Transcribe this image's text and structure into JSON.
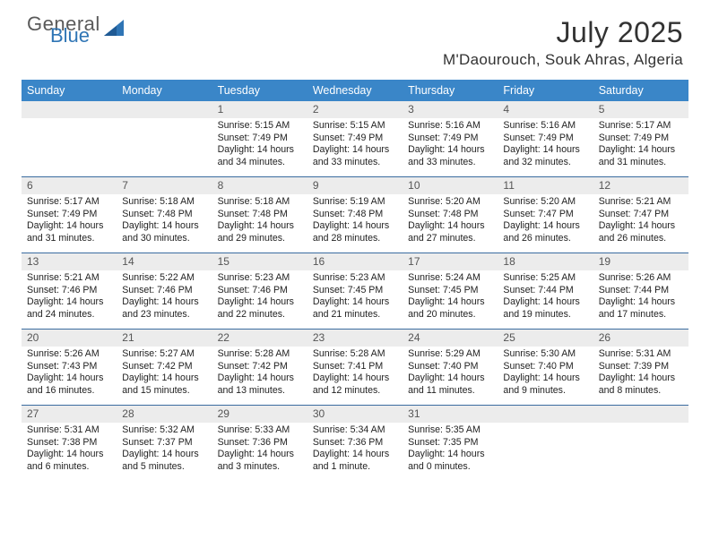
{
  "brand": {
    "word1": "General",
    "word2": "Blue"
  },
  "title": "July 2025",
  "location": "M'Daourouch, Souk Ahras, Algeria",
  "colors": {
    "header_bg": "#3a86c8",
    "header_text": "#ffffff",
    "daynum_bg": "#ececec",
    "week_border": "#3a6ca0",
    "brand_blue": "#2f75b5",
    "brand_gray": "#5a5a5a",
    "text": "#222222"
  },
  "weekdays": [
    "Sunday",
    "Monday",
    "Tuesday",
    "Wednesday",
    "Thursday",
    "Friday",
    "Saturday"
  ],
  "weeks": [
    [
      {
        "num": "",
        "sunrise": "",
        "sunset": "",
        "daylight": ""
      },
      {
        "num": "",
        "sunrise": "",
        "sunset": "",
        "daylight": ""
      },
      {
        "num": "1",
        "sunrise": "Sunrise: 5:15 AM",
        "sunset": "Sunset: 7:49 PM",
        "daylight": "Daylight: 14 hours and 34 minutes."
      },
      {
        "num": "2",
        "sunrise": "Sunrise: 5:15 AM",
        "sunset": "Sunset: 7:49 PM",
        "daylight": "Daylight: 14 hours and 33 minutes."
      },
      {
        "num": "3",
        "sunrise": "Sunrise: 5:16 AM",
        "sunset": "Sunset: 7:49 PM",
        "daylight": "Daylight: 14 hours and 33 minutes."
      },
      {
        "num": "4",
        "sunrise": "Sunrise: 5:16 AM",
        "sunset": "Sunset: 7:49 PM",
        "daylight": "Daylight: 14 hours and 32 minutes."
      },
      {
        "num": "5",
        "sunrise": "Sunrise: 5:17 AM",
        "sunset": "Sunset: 7:49 PM",
        "daylight": "Daylight: 14 hours and 31 minutes."
      }
    ],
    [
      {
        "num": "6",
        "sunrise": "Sunrise: 5:17 AM",
        "sunset": "Sunset: 7:49 PM",
        "daylight": "Daylight: 14 hours and 31 minutes."
      },
      {
        "num": "7",
        "sunrise": "Sunrise: 5:18 AM",
        "sunset": "Sunset: 7:48 PM",
        "daylight": "Daylight: 14 hours and 30 minutes."
      },
      {
        "num": "8",
        "sunrise": "Sunrise: 5:18 AM",
        "sunset": "Sunset: 7:48 PM",
        "daylight": "Daylight: 14 hours and 29 minutes."
      },
      {
        "num": "9",
        "sunrise": "Sunrise: 5:19 AM",
        "sunset": "Sunset: 7:48 PM",
        "daylight": "Daylight: 14 hours and 28 minutes."
      },
      {
        "num": "10",
        "sunrise": "Sunrise: 5:20 AM",
        "sunset": "Sunset: 7:48 PM",
        "daylight": "Daylight: 14 hours and 27 minutes."
      },
      {
        "num": "11",
        "sunrise": "Sunrise: 5:20 AM",
        "sunset": "Sunset: 7:47 PM",
        "daylight": "Daylight: 14 hours and 26 minutes."
      },
      {
        "num": "12",
        "sunrise": "Sunrise: 5:21 AM",
        "sunset": "Sunset: 7:47 PM",
        "daylight": "Daylight: 14 hours and 26 minutes."
      }
    ],
    [
      {
        "num": "13",
        "sunrise": "Sunrise: 5:21 AM",
        "sunset": "Sunset: 7:46 PM",
        "daylight": "Daylight: 14 hours and 24 minutes."
      },
      {
        "num": "14",
        "sunrise": "Sunrise: 5:22 AM",
        "sunset": "Sunset: 7:46 PM",
        "daylight": "Daylight: 14 hours and 23 minutes."
      },
      {
        "num": "15",
        "sunrise": "Sunrise: 5:23 AM",
        "sunset": "Sunset: 7:46 PM",
        "daylight": "Daylight: 14 hours and 22 minutes."
      },
      {
        "num": "16",
        "sunrise": "Sunrise: 5:23 AM",
        "sunset": "Sunset: 7:45 PM",
        "daylight": "Daylight: 14 hours and 21 minutes."
      },
      {
        "num": "17",
        "sunrise": "Sunrise: 5:24 AM",
        "sunset": "Sunset: 7:45 PM",
        "daylight": "Daylight: 14 hours and 20 minutes."
      },
      {
        "num": "18",
        "sunrise": "Sunrise: 5:25 AM",
        "sunset": "Sunset: 7:44 PM",
        "daylight": "Daylight: 14 hours and 19 minutes."
      },
      {
        "num": "19",
        "sunrise": "Sunrise: 5:26 AM",
        "sunset": "Sunset: 7:44 PM",
        "daylight": "Daylight: 14 hours and 17 minutes."
      }
    ],
    [
      {
        "num": "20",
        "sunrise": "Sunrise: 5:26 AM",
        "sunset": "Sunset: 7:43 PM",
        "daylight": "Daylight: 14 hours and 16 minutes."
      },
      {
        "num": "21",
        "sunrise": "Sunrise: 5:27 AM",
        "sunset": "Sunset: 7:42 PM",
        "daylight": "Daylight: 14 hours and 15 minutes."
      },
      {
        "num": "22",
        "sunrise": "Sunrise: 5:28 AM",
        "sunset": "Sunset: 7:42 PM",
        "daylight": "Daylight: 14 hours and 13 minutes."
      },
      {
        "num": "23",
        "sunrise": "Sunrise: 5:28 AM",
        "sunset": "Sunset: 7:41 PM",
        "daylight": "Daylight: 14 hours and 12 minutes."
      },
      {
        "num": "24",
        "sunrise": "Sunrise: 5:29 AM",
        "sunset": "Sunset: 7:40 PM",
        "daylight": "Daylight: 14 hours and 11 minutes."
      },
      {
        "num": "25",
        "sunrise": "Sunrise: 5:30 AM",
        "sunset": "Sunset: 7:40 PM",
        "daylight": "Daylight: 14 hours and 9 minutes."
      },
      {
        "num": "26",
        "sunrise": "Sunrise: 5:31 AM",
        "sunset": "Sunset: 7:39 PM",
        "daylight": "Daylight: 14 hours and 8 minutes."
      }
    ],
    [
      {
        "num": "27",
        "sunrise": "Sunrise: 5:31 AM",
        "sunset": "Sunset: 7:38 PM",
        "daylight": "Daylight: 14 hours and 6 minutes."
      },
      {
        "num": "28",
        "sunrise": "Sunrise: 5:32 AM",
        "sunset": "Sunset: 7:37 PM",
        "daylight": "Daylight: 14 hours and 5 minutes."
      },
      {
        "num": "29",
        "sunrise": "Sunrise: 5:33 AM",
        "sunset": "Sunset: 7:36 PM",
        "daylight": "Daylight: 14 hours and 3 minutes."
      },
      {
        "num": "30",
        "sunrise": "Sunrise: 5:34 AM",
        "sunset": "Sunset: 7:36 PM",
        "daylight": "Daylight: 14 hours and 1 minute."
      },
      {
        "num": "31",
        "sunrise": "Sunrise: 5:35 AM",
        "sunset": "Sunset: 7:35 PM",
        "daylight": "Daylight: 14 hours and 0 minutes."
      },
      {
        "num": "",
        "sunrise": "",
        "sunset": "",
        "daylight": ""
      },
      {
        "num": "",
        "sunrise": "",
        "sunset": "",
        "daylight": ""
      }
    ]
  ]
}
